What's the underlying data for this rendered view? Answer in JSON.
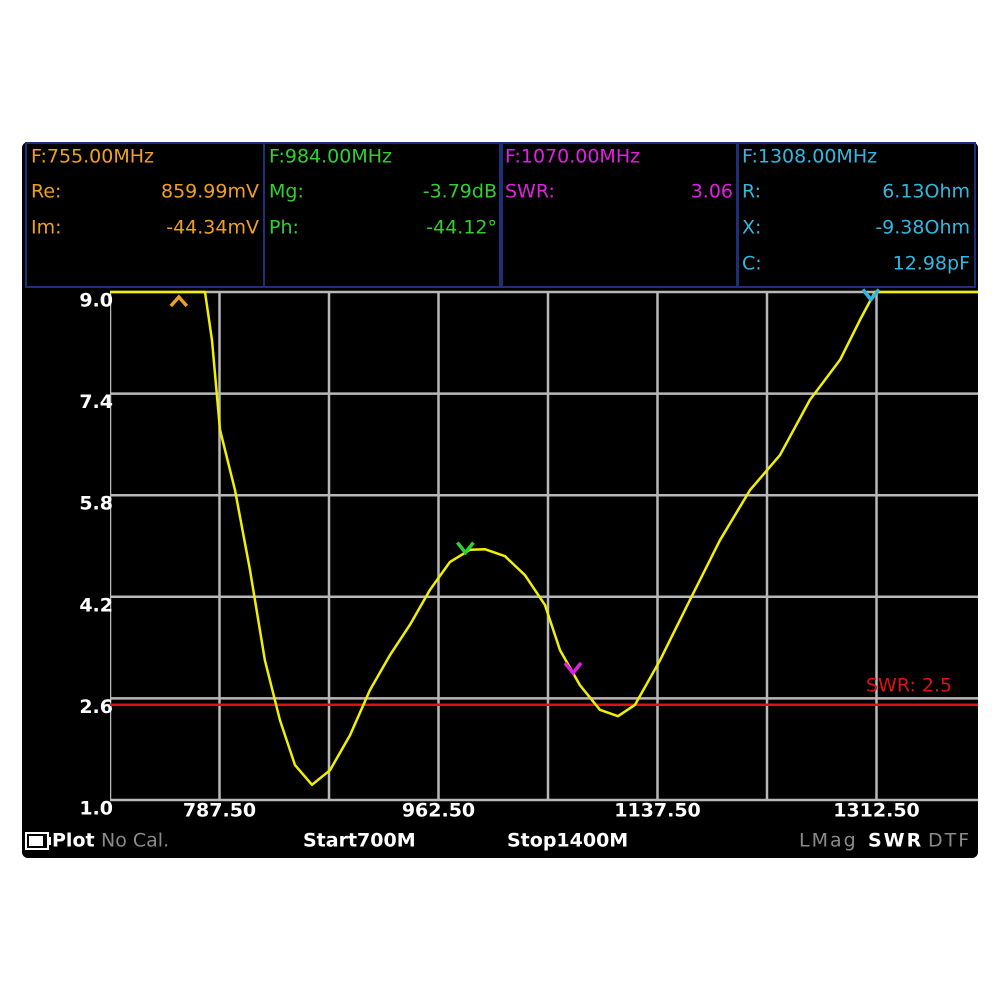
{
  "marker_panel": [
    {
      "color": "#f0a020",
      "title": "F:755.00MHz",
      "rows": [
        {
          "label": "Re:",
          "value": "859.99mV"
        },
        {
          "label": "Im:",
          "value": "-44.34mV"
        }
      ]
    },
    {
      "color": "#30d030",
      "title": "F:984.00MHz",
      "rows": [
        {
          "label": "Mg:",
          "value": "-3.79dB"
        },
        {
          "label": "Ph:",
          "value": "-44.12°"
        }
      ]
    },
    {
      "color": "#e020e0",
      "title": "F:1070.00MHz",
      "rows": [
        {
          "label": "SWR:",
          "value": "3.06"
        }
      ]
    },
    {
      "color": "#30b8e0",
      "title": "F:1308.00MHz",
      "rows": [
        {
          "label": "R:",
          "value": "6.13Ohm"
        },
        {
          "label": "X:",
          "value": "-9.38Ohm"
        },
        {
          "label": "C:",
          "value": "12.98pF"
        }
      ]
    }
  ],
  "chart_data": {
    "type": "line",
    "color": "#f0f000",
    "x": [
      700,
      775.9,
      781.5,
      787.9,
      799.9,
      811.9,
      823.8,
      835.8,
      847.8,
      861.4,
      875.8,
      891.8,
      907.7,
      923.7,
      939.7,
      955.7,
      971.7,
      987.6,
      999.6,
      1015.6,
      1031.6,
      1047.6,
      1059.6,
      1075.5,
      1091.5,
      1105.9,
      1119.5,
      1139.5,
      1163.4,
      1187.4,
      1211.4,
      1235.3,
      1259.3,
      1283.3,
      1299.3,
      1311.2,
      1400
    ],
    "values": [
      9.0,
      9.0,
      8.24,
      6.83,
      5.88,
      4.62,
      3.2,
      2.26,
      1.55,
      1.24,
      1.47,
      2.02,
      2.73,
      3.28,
      3.76,
      4.31,
      4.75,
      4.94,
      4.95,
      4.84,
      4.54,
      4.07,
      3.36,
      2.81,
      2.42,
      2.32,
      2.5,
      3.2,
      4.15,
      5.09,
      5.88,
      6.43,
      7.3,
      7.93,
      8.56,
      9.0,
      9.0
    ],
    "xlim": [
      700,
      1400
    ],
    "ylim": [
      1,
      9
    ],
    "xticks": [
      {
        "value": 787.5,
        "label": "787.50"
      },
      {
        "value": 962.5,
        "label": "962.50"
      },
      {
        "value": 1137.5,
        "label": "1137.50"
      },
      {
        "value": 1312.5,
        "label": "1312.50"
      }
    ],
    "minor_xticks": [
      875,
      1050,
      1225
    ],
    "yticks": [
      {
        "value": 1,
        "label": "1.0"
      },
      2.6,
      4.2,
      5.8,
      7.4,
      {
        "value": 9,
        "label": "9.0"
      }
    ],
    "grid": true,
    "threshold": {
      "value": 2.5,
      "label": "SWR: 2.5",
      "color": "#e01010"
    },
    "markers": [
      {
        "x": 755,
        "color": "#f0a020"
      },
      {
        "x": 984,
        "color": "#30d030"
      },
      {
        "x": 1070,
        "color": "#e020e0"
      },
      {
        "x": 1308,
        "color": "#30b8e0"
      }
    ]
  },
  "status_bar": {
    "mode": "Plot",
    "calibration": "No Cal.",
    "start": "Start700M",
    "stop": "Stop1400M",
    "formats": [
      "LMag",
      "SWR",
      "DTF"
    ],
    "active_format": 1
  }
}
